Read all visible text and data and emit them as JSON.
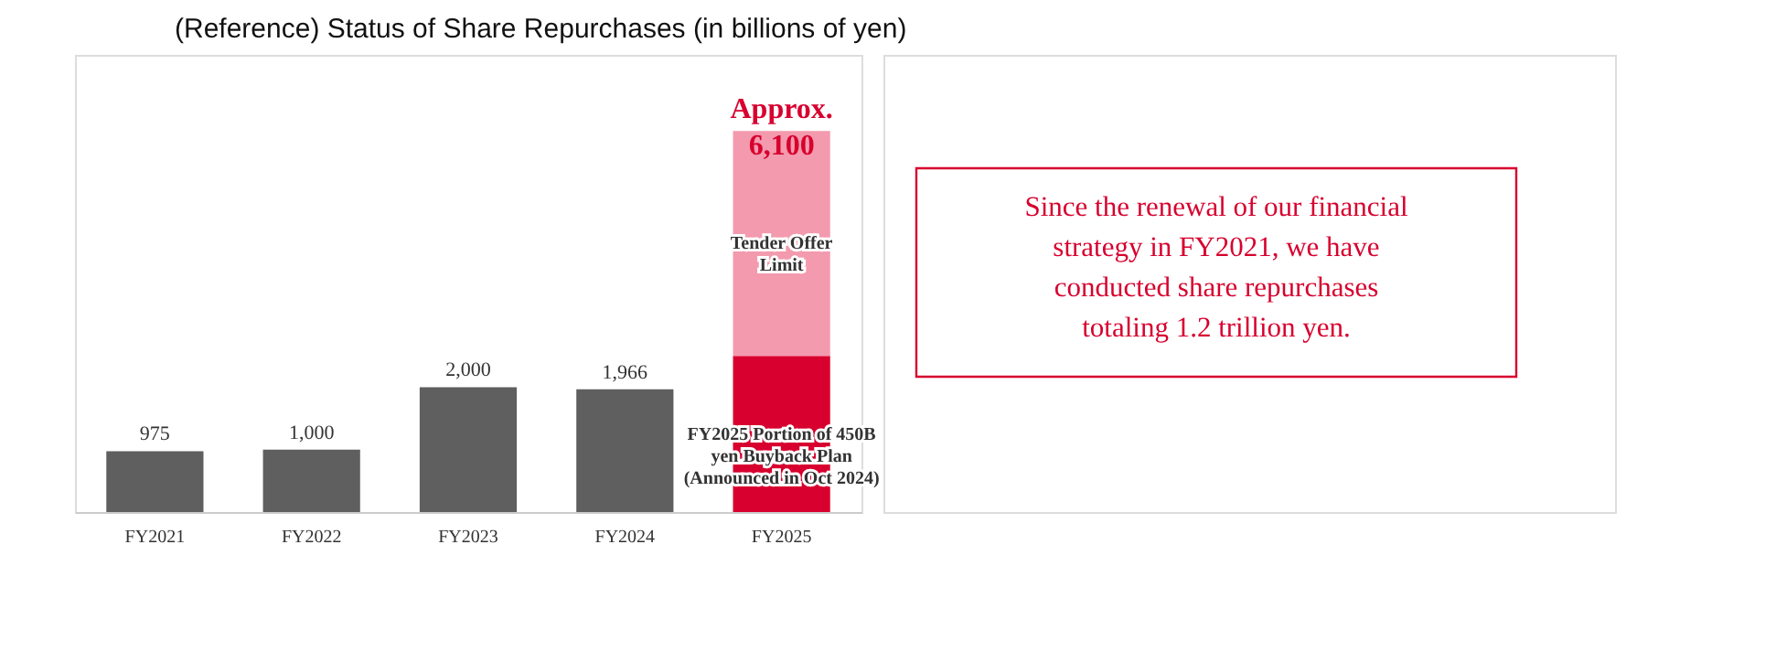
{
  "chart_data": {
    "type": "bar",
    "title": "(Reference) Status of Share Repurchases (in billions of yen)",
    "categories": [
      "FY2021",
      "FY2022",
      "FY2023",
      "FY2024",
      "FY2025"
    ],
    "stacked": true,
    "series": [
      {
        "colors": [
          "#5f5f5f",
          "#5f5f5f",
          "#5f5f5f",
          "#5f5f5f",
          "#d7002e"
        ],
        "values": [
          975,
          1000,
          2000,
          1966,
          2500
        ],
        "value_labels": [
          "975",
          "1,000",
          "2,000",
          "1,966",
          null
        ]
      },
      {
        "color": "#f39aae",
        "values": [
          null,
          null,
          null,
          null,
          3600
        ]
      }
    ],
    "totals": [
      null,
      null,
      null,
      null,
      "Approx.\n6,100"
    ],
    "annotations": [
      "FY2025 Portion of 450B\nyen Buyback Plan\n(Announced in Oct 2024)",
      "Tender Offer\nLimit",
      "Since the renewal of our financial\nstrategy in FY2021, we have\nconducted share repurchases\ntotaling 1.2 trillion yen."
    ]
  }
}
